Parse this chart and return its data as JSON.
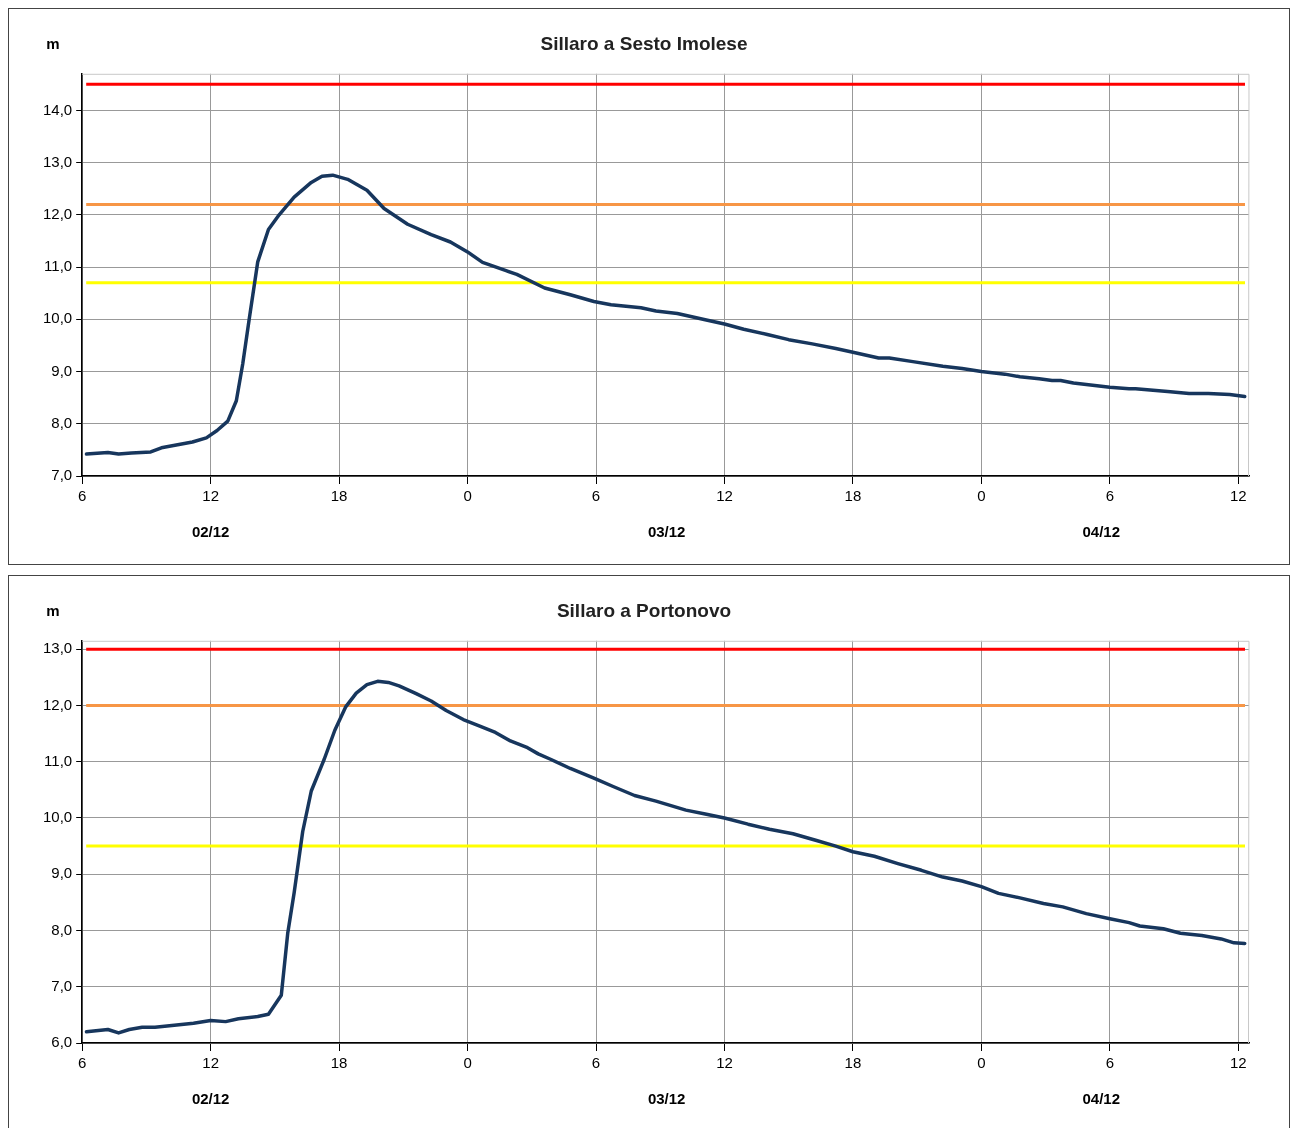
{
  "chart_data": [
    {
      "type": "line",
      "title": "Sillaro a Sesto Imolese",
      "ylabel": "m",
      "grid": true,
      "x": [
        "--12-02T06:12",
        "--12-02T07:12",
        "--12-02T07:42",
        "--12-02T08:18",
        "--12-02T09:12",
        "--12-02T09:42",
        "--12-02T11:09",
        "--12-02T11:48",
        "--12-02T12:18",
        "--12-02T12:48",
        "--12-02T13:12",
        "--12-02T13:30",
        "--12-02T13:48",
        "--12-02T14:12",
        "--12-02T14:42",
        "--12-02T15:12",
        "--12-02T15:54",
        "--12-02T16:42",
        "--12-02T17:12",
        "--12-02T17:42",
        "--12-02T18:24",
        "--12-02T19:18",
        "--12-02T20:06",
        "--12-02T21:12",
        "--12-02T22:18",
        "--12-02T23:12",
        "--12-03T00:00",
        "--12-03T00:42",
        "--12-03T01:48",
        "--12-03T02:18",
        "--12-03T03:36",
        "--12-03T04:48",
        "--12-03T05:54",
        "--12-03T06:42",
        "--12-03T08:06",
        "--12-03T08:48",
        "--12-03T09:48",
        "--12-03T11:06",
        "--12-03T12:00",
        "--12-03T12:54",
        "--12-03T14:00",
        "--12-03T15:00",
        "--12-03T16:06",
        "--12-03T17:12",
        "--12-03T18:00",
        "--12-03T19:12",
        "--12-03T19:42",
        "--12-03T20:48",
        "--12-03T22:12",
        "--12-03T23:06",
        "--12-04T00:00",
        "--12-04T01:06",
        "--12-04T01:48",
        "--12-04T02:42",
        "--12-04T03:18",
        "--12-04T03:42",
        "--12-04T04:18",
        "--12-04T06:00",
        "--12-04T06:54",
        "--12-04T07:12",
        "--12-04T08:42",
        "--12-04T09:42",
        "--12-04T10:36",
        "--12-04T11:36",
        "--12-04T12:18"
      ],
      "series": [
        {
          "color": "#17365d",
          "values": [
            7.42,
            7.45,
            7.42,
            7.44,
            7.46,
            7.54,
            7.65,
            7.73,
            7.87,
            8.05,
            8.44,
            9.15,
            10.0,
            11.1,
            11.72,
            12.0,
            12.34,
            12.62,
            12.74,
            12.76,
            12.68,
            12.47,
            12.12,
            11.82,
            11.62,
            11.48,
            11.29,
            11.09,
            10.93,
            10.86,
            10.6,
            10.47,
            10.34,
            10.28,
            10.22,
            10.16,
            10.11,
            9.99,
            9.91,
            9.81,
            9.71,
            9.61,
            9.53,
            9.44,
            9.37,
            9.26,
            9.26,
            9.19,
            9.1,
            9.06,
            9.0,
            8.95,
            8.9,
            8.86,
            8.83,
            8.83,
            8.78,
            8.7,
            8.67,
            8.67,
            8.62,
            8.58,
            8.58,
            8.56,
            8.52
          ]
        }
      ],
      "xlim": [
        "--12-02T06:00",
        "--12-04T12:30"
      ],
      "xticks": [
        {
          "value": "--12-02T06:00",
          "label": "6"
        },
        {
          "value": "--12-02T12:00",
          "label": "12"
        },
        {
          "value": "--12-02T18:00",
          "label": "18"
        },
        {
          "value": "--12-03T00:00",
          "label": "0"
        },
        {
          "value": "--12-03T06:00",
          "label": "6"
        },
        {
          "value": "--12-03T12:00",
          "label": "12"
        },
        {
          "value": "--12-03T18:00",
          "label": "18"
        },
        {
          "value": "--12-04T00:00",
          "label": "0"
        },
        {
          "value": "--12-04T06:00",
          "label": "6"
        },
        {
          "value": "--12-04T12:00",
          "label": "12"
        }
      ],
      "x2lim": [
        "--12-02T06:00",
        "--12-04T12:30"
      ],
      "x2ticks": [
        {
          "value": "--12-02T12:00",
          "label": "02/12"
        },
        {
          "value": "--12-03T09:18",
          "label": "03/12"
        },
        {
          "value": "--12-04T05:36",
          "label": "04/12"
        }
      ],
      "ylim": [
        7,
        14.7
      ],
      "yticks": [
        {
          "value": 7,
          "label": "7,0"
        },
        {
          "value": 8,
          "label": "8,0"
        },
        {
          "value": 9,
          "label": "9,0"
        },
        {
          "value": 10,
          "label": "10,0"
        },
        {
          "value": 11,
          "label": "11,0"
        },
        {
          "value": 12,
          "label": "12,0"
        },
        {
          "value": 13,
          "label": "13,0"
        },
        {
          "value": 14,
          "label": "14,0"
        }
      ],
      "ref_lines": [
        {
          "axis": "y",
          "value": 14.5,
          "color": "#ff0000"
        },
        {
          "axis": "y",
          "value": 12.2,
          "color": "#f79646"
        },
        {
          "axis": "y",
          "value": 10.7,
          "color": "#ffff00"
        }
      ]
    },
    {
      "type": "line",
      "title": "Sillaro a Portonovo",
      "ylabel": "m",
      "grid": true,
      "x": [
        "--12-02T06:12",
        "--12-02T07:12",
        "--12-02T07:42",
        "--12-02T08:12",
        "--12-02T08:48",
        "--12-02T09:24",
        "--12-02T11:12",
        "--12-02T12:00",
        "--12-02T12:42",
        "--12-02T13:18",
        "--12-02T14:12",
        "--12-02T14:42",
        "--12-02T15:18",
        "--12-02T15:36",
        "--12-02T15:54",
        "--12-02T16:18",
        "--12-02T16:42",
        "--12-02T17:18",
        "--12-02T17:48",
        "--12-02T18:18",
        "--12-02T18:48",
        "--12-02T19:18",
        "--12-02T19:48",
        "--12-02T20:18",
        "--12-02T20:48",
        "--12-02T21:36",
        "--12-02T22:18",
        "--12-02T23:00",
        "--12-02T23:48",
        "--12-03T00:36",
        "--12-03T01:18",
        "--12-03T02:00",
        "--12-03T02:48",
        "--12-03T03:18",
        "--12-03T03:54",
        "--12-03T04:48",
        "--12-03T05:54",
        "--12-03T06:48",
        "--12-03T07:48",
        "--12-03T08:48",
        "--12-03T10:12",
        "--12-03T11:06",
        "--12-03T12:00",
        "--12-03T13:06",
        "--12-03T14:06",
        "--12-03T15:12",
        "--12-03T16:18",
        "--12-03T17:12",
        "--12-03T18:00",
        "--12-03T19:00",
        "--12-03T20:06",
        "--12-03T21:12",
        "--12-03T22:12",
        "--12-03T23:06",
        "--12-04T00:00",
        "--12-04T00:48",
        "--12-04T01:48",
        "--12-04T02:54",
        "--12-04T03:48",
        "--12-04T04:54",
        "--12-04T06:00",
        "--12-04T06:54",
        "--12-04T07:24",
        "--12-04T08:30",
        "--12-04T09:18",
        "--12-04T10:18",
        "--12-04T11:12",
        "--12-04T11:48",
        "--12-04T12:18"
      ],
      "series": [
        {
          "color": "#17365d",
          "values": [
            6.2,
            6.24,
            6.18,
            6.24,
            6.28,
            6.28,
            6.35,
            6.4,
            6.38,
            6.43,
            6.47,
            6.51,
            6.85,
            7.95,
            8.67,
            9.76,
            10.48,
            11.04,
            11.56,
            11.97,
            12.22,
            12.37,
            12.43,
            12.41,
            12.35,
            12.21,
            12.08,
            11.91,
            11.75,
            11.63,
            11.52,
            11.37,
            11.25,
            11.14,
            11.04,
            10.88,
            10.71,
            10.56,
            10.4,
            10.3,
            10.14,
            10.07,
            10.0,
            9.89,
            9.8,
            9.72,
            9.6,
            9.5,
            9.4,
            9.32,
            9.19,
            9.07,
            8.95,
            8.88,
            8.78,
            8.66,
            8.58,
            8.48,
            8.42,
            8.3,
            8.21,
            8.14,
            8.08,
            8.03,
            7.95,
            7.91,
            7.85,
            7.78,
            7.77
          ]
        }
      ],
      "xlim": [
        "--12-02T06:00",
        "--12-04T12:30"
      ],
      "xticks": [
        {
          "value": "--12-02T06:00",
          "label": "6"
        },
        {
          "value": "--12-02T12:00",
          "label": "12"
        },
        {
          "value": "--12-02T18:00",
          "label": "18"
        },
        {
          "value": "--12-03T00:00",
          "label": "0"
        },
        {
          "value": "--12-03T06:00",
          "label": "6"
        },
        {
          "value": "--12-03T12:00",
          "label": "12"
        },
        {
          "value": "--12-03T18:00",
          "label": "18"
        },
        {
          "value": "--12-04T00:00",
          "label": "0"
        },
        {
          "value": "--12-04T06:00",
          "label": "6"
        },
        {
          "value": "--12-04T12:00",
          "label": "12"
        }
      ],
      "x2lim": [
        "--12-02T06:00",
        "--12-04T12:30"
      ],
      "x2ticks": [
        {
          "value": "--12-02T12:00",
          "label": "02/12"
        },
        {
          "value": "--12-03T09:18",
          "label": "03/12"
        },
        {
          "value": "--12-04T05:36",
          "label": "04/12"
        }
      ],
      "ylim": [
        6,
        13.15
      ],
      "yticks": [
        {
          "value": 6,
          "label": "6,0"
        },
        {
          "value": 7,
          "label": "7,0"
        },
        {
          "value": 8,
          "label": "8,0"
        },
        {
          "value": 9,
          "label": "9,0"
        },
        {
          "value": 10,
          "label": "10,0"
        },
        {
          "value": 11,
          "label": "11,0"
        },
        {
          "value": 12,
          "label": "12,0"
        },
        {
          "value": 13,
          "label": "13,0"
        }
      ],
      "ref_lines": [
        {
          "axis": "y",
          "value": 13.0,
          "color": "#ff0000"
        },
        {
          "axis": "y",
          "value": 12.0,
          "color": "#f79646"
        },
        {
          "axis": "y",
          "value": 9.5,
          "color": "#ffff00"
        }
      ]
    }
  ]
}
